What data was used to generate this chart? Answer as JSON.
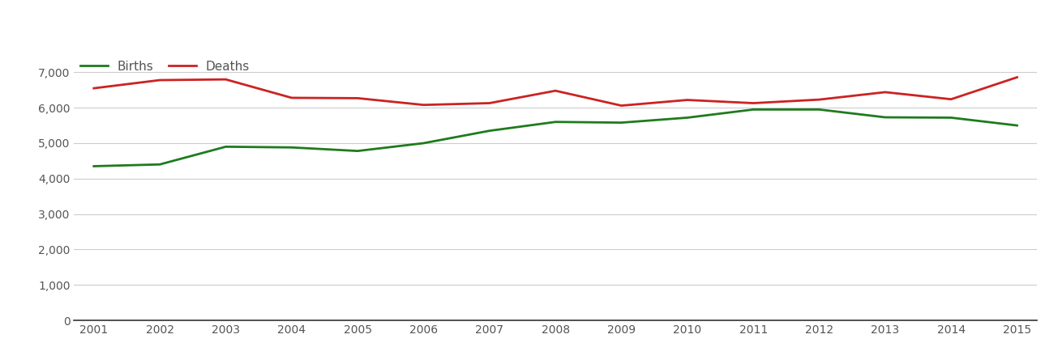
{
  "years": [
    2001,
    2002,
    2003,
    2004,
    2005,
    2006,
    2007,
    2008,
    2009,
    2010,
    2011,
    2012,
    2013,
    2014,
    2015
  ],
  "births": [
    4350,
    4400,
    4900,
    4880,
    4780,
    5000,
    5350,
    5600,
    5580,
    5720,
    5950,
    5950,
    5730,
    5720,
    5500
  ],
  "deaths": [
    6550,
    6780,
    6800,
    6280,
    6270,
    6080,
    6130,
    6480,
    6060,
    6220,
    6130,
    6230,
    6440,
    6240,
    6860
  ],
  "births_color": "#1e7b1e",
  "deaths_color": "#cc2222",
  "line_width": 2.0,
  "ylim": [
    0,
    7500
  ],
  "yticks": [
    0,
    1000,
    2000,
    3000,
    4000,
    5000,
    6000,
    7000
  ],
  "grid_color": "#cccccc",
  "background_color": "#ffffff",
  "legend_births": "Births",
  "legend_deaths": "Deaths",
  "tick_color": "#555555",
  "spine_color": "#333333"
}
